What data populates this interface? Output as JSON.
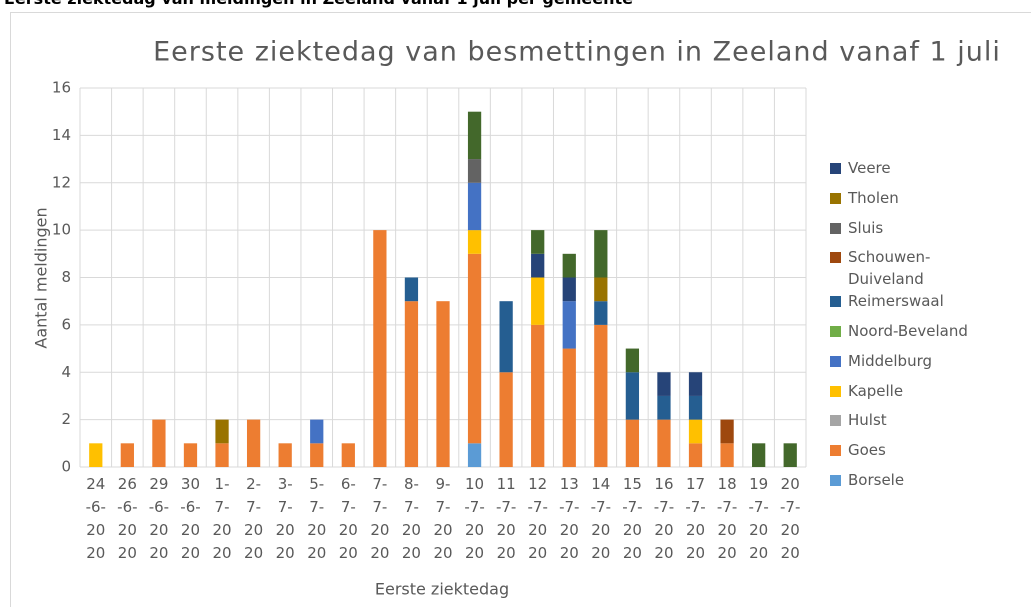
{
  "header": {
    "title": "Eerste ziektedag van meldingen in Zeeland vanaf 1 juli per gemeente"
  },
  "chart_data": {
    "type": "stacked_bar",
    "title": "Eerste ziektedag van besmettingen in Zeeland vanaf 1 juli",
    "x_label": "Eerste ziektedag",
    "y_label": "Aantal meldingen",
    "categories": [
      "24-6-2020",
      "26-6-2020",
      "29-6-2020",
      "30-6-2020",
      "1-7-2020",
      "2-7-2020",
      "3-7-2020",
      "5-7-2020",
      "6-7-2020",
      "7-7-2020",
      "8-7-2020",
      "9-7-2020",
      "10-7-2020",
      "11-7-2020",
      "12-7-2020",
      "13-7-2020",
      "14-7-2020",
      "15-7-2020",
      "16-7-2020",
      "17-7-2020",
      "18-7-2020",
      "19-7-2020",
      "20-7-2020"
    ],
    "series": [
      {
        "name": "Borsele",
        "color": "#5b9bd5",
        "values": [
          0,
          0,
          0,
          0,
          0,
          0,
          0,
          0,
          0,
          0,
          0,
          0,
          1,
          0,
          0,
          0,
          0,
          0,
          0,
          0,
          0,
          0,
          0
        ]
      },
      {
        "name": "Goes",
        "color": "#ed7d31",
        "values": [
          0,
          1,
          2,
          1,
          1,
          2,
          1,
          1,
          1,
          10,
          7,
          7,
          8,
          4,
          6,
          5,
          6,
          2,
          2,
          1,
          1,
          0,
          0
        ]
      },
      {
        "name": "Hulst",
        "color": "#a5a5a5",
        "values": [
          0,
          0,
          0,
          0,
          0,
          0,
          0,
          0,
          0,
          0,
          0,
          0,
          0,
          0,
          0,
          0,
          0,
          0,
          0,
          0,
          0,
          0,
          0
        ]
      },
      {
        "name": "Kapelle",
        "color": "#ffc000",
        "values": [
          1,
          0,
          0,
          0,
          0,
          0,
          0,
          0,
          0,
          0,
          0,
          0,
          1,
          0,
          2,
          0,
          0,
          0,
          0,
          1,
          0,
          0,
          0
        ]
      },
      {
        "name": "Middelburg",
        "color": "#4472c4",
        "values": [
          0,
          0,
          0,
          0,
          0,
          0,
          0,
          1,
          0,
          0,
          0,
          0,
          2,
          0,
          0,
          2,
          0,
          0,
          0,
          0,
          0,
          0,
          0
        ]
      },
      {
        "name": "Noord-Beveland",
        "color": "#70ad47",
        "values": [
          0,
          0,
          0,
          0,
          0,
          0,
          0,
          0,
          0,
          0,
          0,
          0,
          0,
          0,
          0,
          0,
          0,
          0,
          0,
          0,
          0,
          0,
          0
        ]
      },
      {
        "name": "Reimerswaal",
        "color": "#255e91",
        "values": [
          0,
          0,
          0,
          0,
          0,
          0,
          0,
          0,
          0,
          0,
          1,
          0,
          0,
          3,
          0,
          0,
          1,
          2,
          1,
          1,
          0,
          0,
          0
        ]
      },
      {
        "name": "Schouwen-Duiveland",
        "color": "#9e480e",
        "values": [
          0,
          0,
          0,
          0,
          0,
          0,
          0,
          0,
          0,
          0,
          0,
          0,
          0,
          0,
          0,
          0,
          0,
          0,
          0,
          0,
          1,
          0,
          0
        ]
      },
      {
        "name": "Sluis",
        "color": "#636363",
        "values": [
          0,
          0,
          0,
          0,
          0,
          0,
          0,
          0,
          0,
          0,
          0,
          0,
          1,
          0,
          0,
          0,
          0,
          0,
          0,
          0,
          0,
          0,
          0
        ]
      },
      {
        "name": "Tholen",
        "color": "#997300",
        "values": [
          0,
          0,
          0,
          0,
          1,
          0,
          0,
          0,
          0,
          0,
          0,
          0,
          0,
          0,
          0,
          0,
          1,
          0,
          0,
          0,
          0,
          0,
          0
        ]
      },
      {
        "name": "Veere",
        "color": "#264478",
        "values": [
          0,
          0,
          0,
          0,
          0,
          0,
          0,
          0,
          0,
          0,
          0,
          0,
          0,
          0,
          1,
          1,
          0,
          0,
          1,
          1,
          0,
          0,
          0
        ]
      },
      {
        "name": null,
        "color": "#43682b",
        "values": [
          0,
          0,
          0,
          0,
          0,
          0,
          0,
          0,
          0,
          0,
          0,
          0,
          2,
          0,
          1,
          1,
          2,
          1,
          0,
          0,
          0,
          1,
          1
        ]
      }
    ],
    "ylim": [
      0,
      16
    ],
    "yticks": [
      0,
      2,
      4,
      6,
      8,
      10,
      12,
      14,
      16
    ],
    "grid": true
  }
}
